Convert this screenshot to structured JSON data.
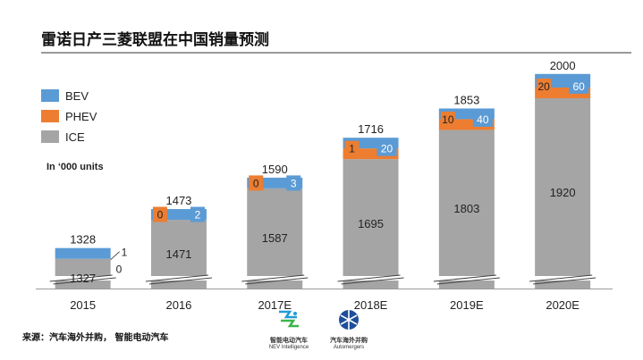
{
  "title": "雷诺日产三菱联盟在中国销量预测",
  "source": "来源：汽车海外并购， 智能电动汽车",
  "logos": {
    "nev": {
      "cn": "智能电动汽车",
      "en": "NEV Intelligence"
    },
    "automergers": {
      "cn": "汽车海外并购",
      "en": "Automergers"
    }
  },
  "colors": {
    "BEV": "#5b9bd5",
    "PHEV": "#ed7d31",
    "ICE": "#a5a5a5"
  },
  "chart_data": {
    "type": "bar",
    "stacked": true,
    "unit_note": "In ‘000 units",
    "categories": [
      "2015",
      "2016",
      "2017E",
      "2018E",
      "2019E",
      "2020E"
    ],
    "series": [
      {
        "name": "ICE",
        "values": [
          1327,
          1471,
          1587,
          1695,
          1803,
          1920
        ]
      },
      {
        "name": "PHEV",
        "values": [
          0,
          0,
          0,
          1,
          10,
          20
        ]
      },
      {
        "name": "BEV",
        "values": [
          1,
          2,
          3,
          20,
          40,
          60
        ]
      }
    ],
    "totals": [
      1328,
      1473,
      1590,
      1716,
      1853,
      2000
    ],
    "legend": [
      "BEV",
      "PHEV",
      "ICE"
    ],
    "legend_position": "top-left",
    "axis_break": true,
    "grid": false
  }
}
